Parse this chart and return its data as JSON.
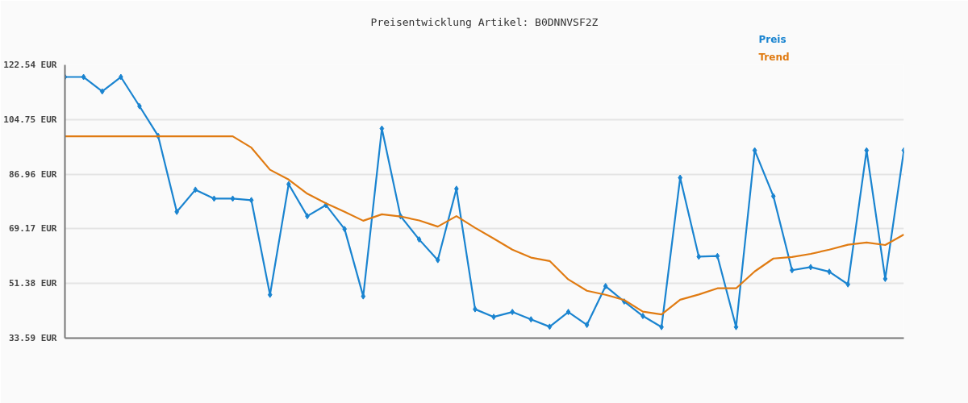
{
  "chart_data": {
    "type": "line",
    "title": "Preisentwicklung Artikel: B0DNNVSF2Z",
    "categories": [
      null,
      null,
      null,
      null,
      null,
      null,
      null,
      null,
      null,
      null,
      null,
      null,
      null,
      null,
      null,
      null,
      null,
      null,
      null,
      null,
      null,
      null,
      null,
      null,
      null,
      null,
      null,
      null,
      null,
      null,
      null,
      null,
      null,
      null,
      null,
      null,
      null,
      null,
      null,
      null,
      null,
      null,
      null,
      null,
      null,
      null
    ],
    "series": [
      {
        "name": "Preis",
        "color": "#1a84d0",
        "marker": "diamond",
        "values": [
          118.6,
          118.6,
          113.9,
          118.6,
          109.1,
          99.4,
          74.7,
          81.9,
          79.0,
          79.0,
          78.5,
          47.7,
          83.7,
          73.3,
          76.9,
          69.1,
          47.2,
          101.8,
          73.3,
          65.7,
          59.0,
          82.2,
          43.0,
          40.5,
          42.1,
          39.7,
          37.3,
          42.1,
          37.9,
          50.5,
          45.5,
          40.8,
          37.2,
          85.8,
          60.1,
          60.3,
          37.2,
          94.7,
          79.8,
          55.7,
          56.7,
          55.2,
          51.1,
          94.7,
          52.9,
          94.7
        ]
      },
      {
        "name": "Trend",
        "color": "#e07b12",
        "values": [
          99.3,
          99.3,
          99.3,
          99.3,
          99.3,
          99.3,
          99.3,
          99.3,
          99.3,
          99.3,
          95.6,
          88.4,
          85.2,
          80.6,
          77.5,
          74.7,
          71.8,
          73.9,
          73.2,
          71.9,
          69.9,
          73.3,
          69.5,
          66.0,
          62.4,
          59.8,
          58.7,
          52.7,
          49.0,
          47.7,
          46.0,
          42.2,
          41.3,
          46.1,
          47.8,
          49.8,
          49.8,
          55.3,
          59.5,
          60.0,
          61.0,
          62.4,
          64.0,
          64.7,
          63.9,
          67.3
        ]
      }
    ],
    "ylim": [
      33.59,
      122.54
    ],
    "yticks": [
      {
        "value": 33.59,
        "label": "33.59 EUR"
      },
      {
        "value": 51.38,
        "label": "51.38 EUR"
      },
      {
        "value": 69.17,
        "label": "69.17 EUR"
      },
      {
        "value": 86.96,
        "label": "86.96 EUR"
      },
      {
        "value": 104.75,
        "label": "104.75 EUR"
      },
      {
        "value": 122.54,
        "label": "122.54 EUR"
      }
    ],
    "grid": "y",
    "tick_labels": "y"
  }
}
